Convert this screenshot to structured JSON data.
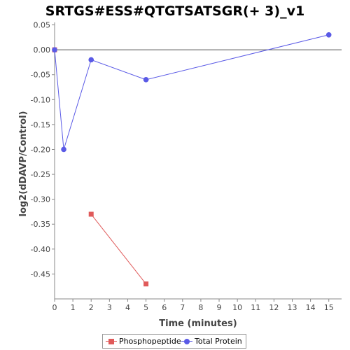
{
  "chart_data": {
    "type": "line",
    "title": "SRTGS#ESS#QTGTSATSGR(+ 3)_v1",
    "xlabel": "Time (minutes)",
    "ylabel": "log2(dDAVP/Control)",
    "xlim": [
      0,
      15.7
    ],
    "ylim": [
      -0.5,
      0.055
    ],
    "x_ticks": [
      0,
      1,
      2,
      3,
      4,
      5,
      6,
      7,
      8,
      9,
      10,
      11,
      12,
      13,
      14,
      15
    ],
    "y_ticks": [
      0.05,
      0.0,
      -0.05,
      -0.1,
      -0.15,
      -0.2,
      -0.25,
      -0.3,
      -0.35,
      -0.4,
      -0.45
    ],
    "y_tick_labels": [
      "0.05",
      "0.00",
      "-0.05",
      "-0.10",
      "-0.15",
      "-0.20",
      "-0.25",
      "-0.30",
      "-0.35",
      "-0.40",
      "-0.45"
    ],
    "zero_line": true,
    "grid": false,
    "legend_position": "bottom",
    "series": [
      {
        "name": "Phosphopeptide",
        "color": "#e05a5a",
        "marker": "square",
        "segments": [
          [
            {
              "x": 0,
              "y": 0.0
            }
          ],
          [
            {
              "x": 2,
              "y": -0.33
            },
            {
              "x": 5,
              "y": -0.47
            }
          ]
        ]
      },
      {
        "name": "Total Protein",
        "color": "#5a5ae6",
        "marker": "circle",
        "segments": [
          [
            {
              "x": 0,
              "y": 0.0
            },
            {
              "x": 0.5,
              "y": -0.2
            },
            {
              "x": 2,
              "y": -0.02
            },
            {
              "x": 5,
              "y": -0.06
            },
            {
              "x": 15,
              "y": 0.03
            }
          ]
        ]
      }
    ]
  }
}
